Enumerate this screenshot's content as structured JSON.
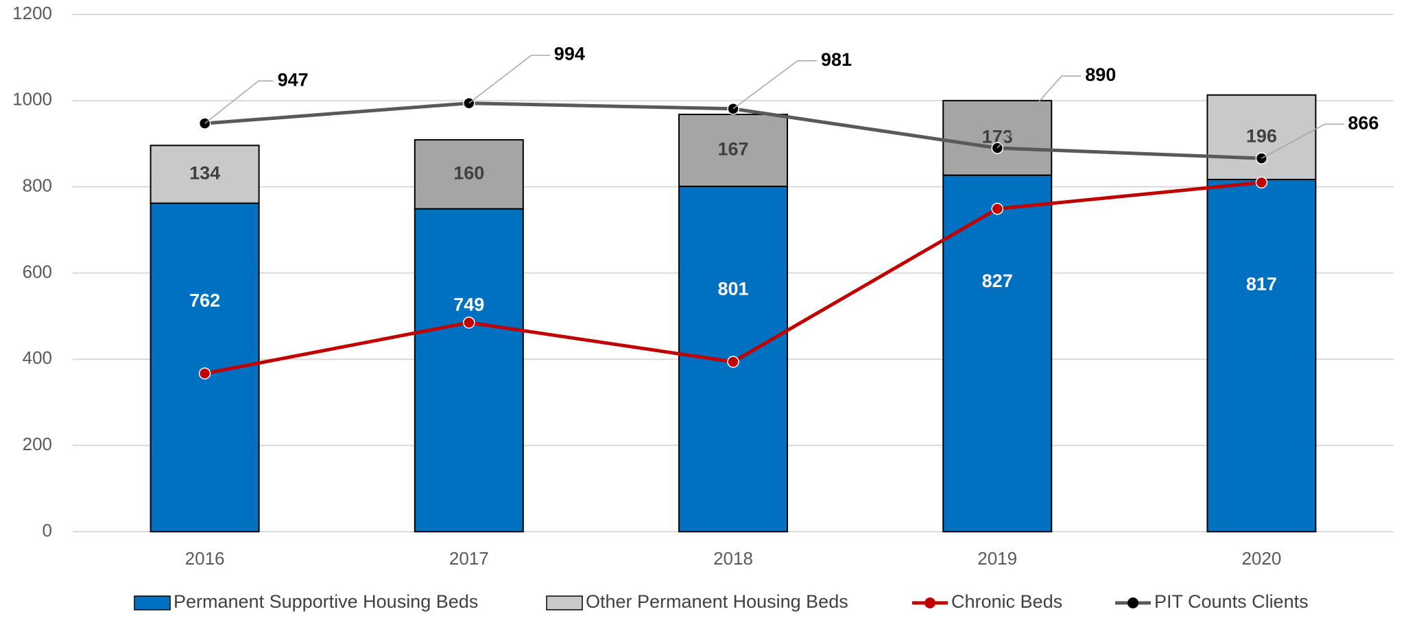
{
  "chart_data": {
    "type": "bar",
    "categories": [
      "2016",
      "2017",
      "2018",
      "2019",
      "2020"
    ],
    "series": [
      {
        "name": "Permanent Supportive Housing Beds",
        "type": "bar",
        "stack": true,
        "color": "#0070c0",
        "label_color": "#ffffff",
        "values": [
          762,
          749,
          801,
          827,
          817
        ]
      },
      {
        "name": "Other Permanent Housing Beds",
        "type": "bar",
        "stack": true,
        "color": "#c9c9c9",
        "colors": [
          "#c9c9c9",
          "#a5a5a5",
          "#a5a5a5",
          "#a5a5a5",
          "#c9c9c9"
        ],
        "label_color": "#404040",
        "values": [
          134,
          160,
          167,
          173,
          196
        ]
      },
      {
        "name": "Chronic Beds",
        "type": "line",
        "color": "#c00000",
        "marker_color": "#c00000",
        "values": [
          367,
          485,
          394,
          749,
          810
        ]
      },
      {
        "name": "PIT Counts Clients",
        "type": "line",
        "color": "#595959",
        "marker_color": "#000000",
        "label_color": "#000000",
        "data_labels": true,
        "values": [
          947,
          994,
          981,
          890,
          866
        ]
      }
    ],
    "ylim": [
      0,
      1200
    ],
    "yticks": [
      0,
      200,
      400,
      600,
      800,
      1000,
      1200
    ],
    "grid": true,
    "legend": "bottom"
  }
}
